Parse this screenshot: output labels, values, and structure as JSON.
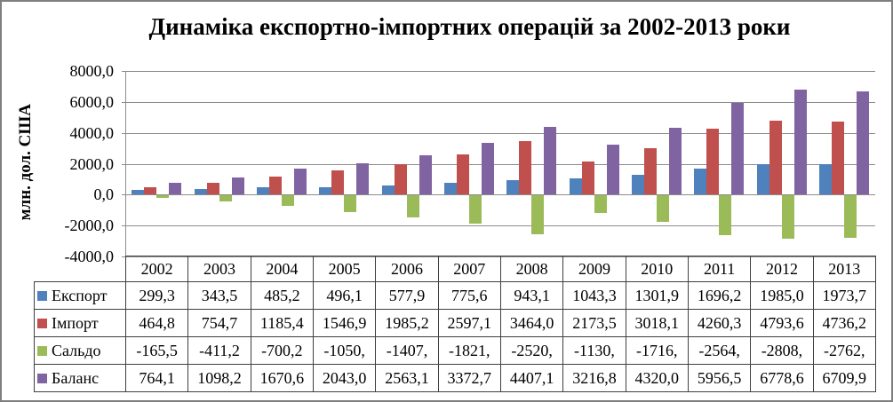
{
  "title": "Динаміка експортно-імпортних операцій за 2002-2013 роки",
  "y_axis": {
    "title": "млн. дол. США",
    "tick_labels": [
      "8000,0",
      "6000,0",
      "4000,0",
      "2000,0",
      "0,0",
      "-2000,0",
      "-4000,0"
    ]
  },
  "chart_data": {
    "type": "bar",
    "title": "Динаміка експортно-імпортних операцій за 2002-2013 роки",
    "xlabel": "",
    "ylabel": "млн. дол. США",
    "ylim": [
      -4000,
      8000
    ],
    "ytick_step": 2000,
    "grid": true,
    "legend_position": "data-table-below-chart",
    "categories": [
      "2002",
      "2003",
      "2004",
      "2005",
      "2006",
      "2007",
      "2008",
      "2009",
      "2010",
      "2011",
      "2012",
      "2013"
    ],
    "series": [
      {
        "name": "Експорт",
        "slug": "eksport",
        "color": "#4F81BD",
        "values": [
          299.3,
          343.5,
          485.2,
          496.1,
          577.9,
          775.6,
          943.1,
          1043.3,
          1301.9,
          1696.2,
          1985.0,
          1973.7
        ]
      },
      {
        "name": "Імпорт",
        "slug": "import",
        "color": "#C0504D",
        "values": [
          464.8,
          754.7,
          1185.4,
          1546.9,
          1985.2,
          2597.1,
          3464.0,
          2173.5,
          3018.1,
          4260.3,
          4793.6,
          4736.2
        ]
      },
      {
        "name": "Сальдо",
        "slug": "saldo",
        "color": "#9BBB59",
        "values": [
          -165.5,
          -411.2,
          -700.2,
          -1050.8,
          -1407.3,
          -1821.5,
          -2520.9,
          -1130.2,
          -1716.2,
          -2564.1,
          -2808.6,
          -2762.5
        ]
      },
      {
        "name": "Баланс",
        "slug": "balans",
        "color": "#8064A2",
        "values": [
          764.1,
          1098.2,
          1670.6,
          2043.0,
          2563.1,
          3372.7,
          4407.1,
          3216.8,
          4320.0,
          5956.5,
          6778.6,
          6709.9
        ]
      }
    ]
  },
  "data_table": {
    "year_headers": [
      "2002",
      "2003",
      "2004",
      "2005",
      "2006",
      "2007",
      "2008",
      "2009",
      "2010",
      "2011",
      "2012",
      "2013"
    ],
    "rows": [
      {
        "label": "Експорт",
        "slug": "eksport",
        "color": "#4F81BD",
        "cells": [
          "299,3",
          "343,5",
          "485,2",
          "496,1",
          "577,9",
          "775,6",
          "943,1",
          "1043,3",
          "1301,9",
          "1696,2",
          "1985,0",
          "1973,7"
        ]
      },
      {
        "label": "Імпорт",
        "slug": "import",
        "color": "#C0504D",
        "cells": [
          "464,8",
          "754,7",
          "1185,4",
          "1546,9",
          "1985,2",
          "2597,1",
          "3464,0",
          "2173,5",
          "3018,1",
          "4260,3",
          "4793,6",
          "4736,2"
        ]
      },
      {
        "label": "Сальдо",
        "slug": "saldo",
        "color": "#9BBB59",
        "cells": [
          "-165,5",
          "-411,2",
          "-700,2",
          "-1050,",
          "-1407,",
          "-1821,",
          "-2520,",
          "-1130,",
          "-1716,",
          "-2564,",
          "-2808,",
          "-2762,"
        ]
      },
      {
        "label": "Баланс",
        "slug": "balans",
        "color": "#8064A2",
        "cells": [
          "764,1",
          "1098,2",
          "1670,6",
          "2043,0",
          "2563,1",
          "3372,7",
          "4407,1",
          "3216,8",
          "4320,0",
          "5956,5",
          "6778,6",
          "6709,9"
        ]
      }
    ]
  },
  "style": {
    "grid_color": "#8C8C8C",
    "axis_color": "#8C8C8C",
    "table_border_color": "#3F3F3F",
    "frame_border_color": "#7F7F7F",
    "background": "#FFFFFF",
    "text_color": "#000000"
  }
}
